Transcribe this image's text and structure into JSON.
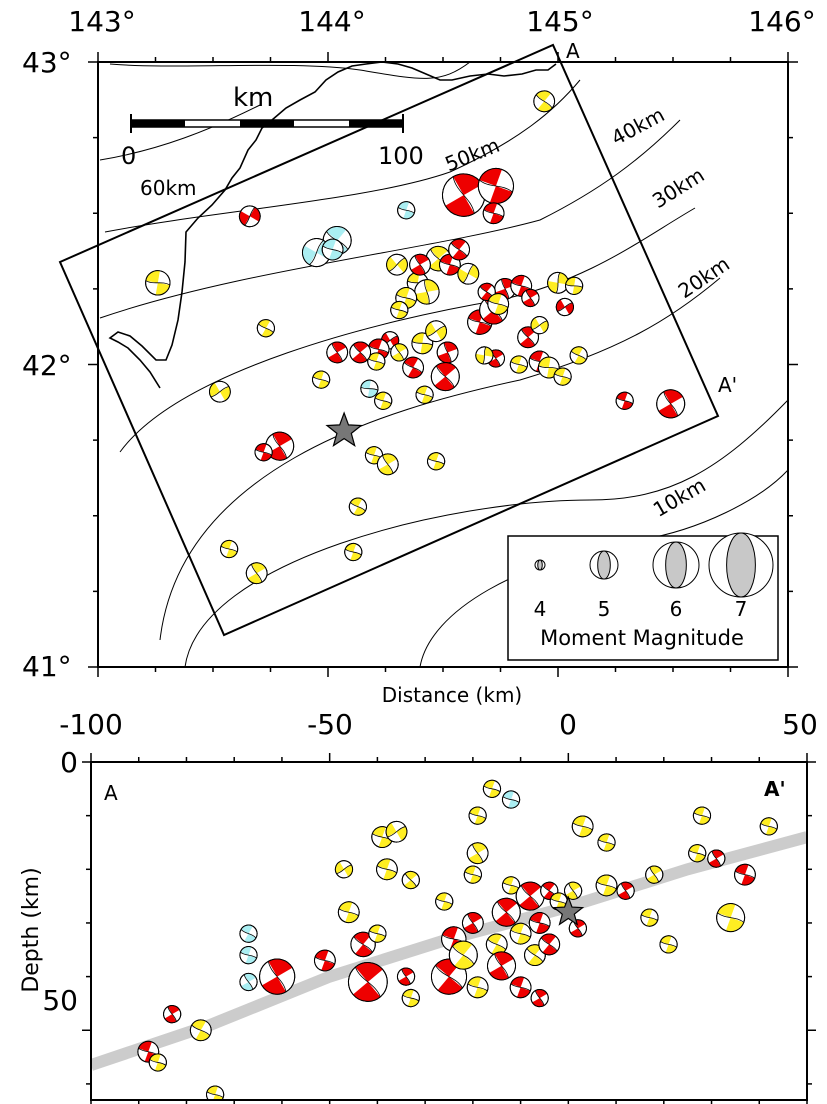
{
  "chart_data": [
    {
      "type": "scatter",
      "panel": "map",
      "lon_ticks": [
        "143°",
        "144°",
        "145°",
        "146°"
      ],
      "lat_ticks": [
        "43°",
        "42°",
        "41°"
      ],
      "xlim": [
        143,
        146
      ],
      "ylim": [
        41,
        43
      ],
      "scale_bar": {
        "unit": "km",
        "start": "0",
        "end": "100"
      },
      "slab_contours": [
        "60km",
        "50km",
        "40km",
        "30km",
        "20km",
        "10km"
      ],
      "profile_labels": {
        "start": "A",
        "end": "A'"
      },
      "epicenter": {
        "lon": 144.07,
        "lat": 41.78,
        "symbol": "star"
      },
      "legend": {
        "title": "Moment Magnitude",
        "magnitudes": [
          "4",
          "5",
          "6",
          "7"
        ]
      },
      "colors": {
        "red": "#ee0000",
        "yellow": "#ffee22",
        "cyan": "#aaeef2",
        "star": "#777777"
      },
      "mechanisms": [
        {
          "lon": 144.94,
          "lat": 42.87,
          "mag": 4.6,
          "color": "yellow",
          "rot": 40
        },
        {
          "lon": 143.26,
          "lat": 42.27,
          "mag": 4.8,
          "color": "yellow",
          "rot": 10
        },
        {
          "lon": 143.66,
          "lat": 42.49,
          "mag": 4.6,
          "color": "red",
          "rot": 300
        },
        {
          "lon": 144.04,
          "lat": 42.41,
          "mag": 5.0,
          "color": "cyan",
          "rot": 40
        },
        {
          "lon": 143.95,
          "lat": 42.37,
          "mag": 5.0,
          "color": "cyan",
          "rot": 120
        },
        {
          "lon": 144.02,
          "lat": 42.38,
          "mag": 4.6,
          "color": "cyan",
          "rot": 20
        },
        {
          "lon": 144.34,
          "lat": 42.51,
          "mag": 4.4,
          "color": "cyan",
          "rot": 200
        },
        {
          "lon": 144.59,
          "lat": 42.56,
          "mag": 5.8,
          "color": "red",
          "rot": 240
        },
        {
          "lon": 144.73,
          "lat": 42.59,
          "mag": 5.4,
          "color": "red",
          "rot": 200
        },
        {
          "lon": 144.72,
          "lat": 42.5,
          "mag": 4.6,
          "color": "red",
          "rot": 200
        },
        {
          "lon": 143.73,
          "lat": 42.12,
          "mag": 4.4,
          "color": "yellow",
          "rot": 30
        },
        {
          "lon": 144.3,
          "lat": 42.33,
          "mag": 4.6,
          "color": "yellow",
          "rot": 320
        },
        {
          "lon": 144.39,
          "lat": 42.27,
          "mag": 4.6,
          "color": "yellow",
          "rot": 10
        },
        {
          "lon": 144.43,
          "lat": 42.24,
          "mag": 4.8,
          "color": "yellow",
          "rot": 80
        },
        {
          "lon": 144.48,
          "lat": 42.35,
          "mag": 4.8,
          "color": "yellow",
          "rot": 50
        },
        {
          "lon": 144.53,
          "lat": 42.33,
          "mag": 4.6,
          "color": "red",
          "rot": 200
        },
        {
          "lon": 144.57,
          "lat": 42.38,
          "mag": 4.6,
          "color": "red",
          "rot": 220
        },
        {
          "lon": 144.61,
          "lat": 42.3,
          "mag": 4.6,
          "color": "yellow",
          "rot": 120
        },
        {
          "lon": 144.4,
          "lat": 42.33,
          "mag": 4.6,
          "color": "red",
          "rot": 240
        },
        {
          "lon": 144.34,
          "lat": 42.22,
          "mag": 4.6,
          "color": "yellow",
          "rot": 20
        },
        {
          "lon": 144.31,
          "lat": 42.18,
          "mag": 4.4,
          "color": "yellow",
          "rot": 20
        },
        {
          "lon": 144.27,
          "lat": 42.08,
          "mag": 4.4,
          "color": "red",
          "rot": 330
        },
        {
          "lon": 144.22,
          "lat": 42.05,
          "mag": 4.6,
          "color": "red",
          "rot": 200
        },
        {
          "lon": 144.31,
          "lat": 42.04,
          "mag": 4.4,
          "color": "yellow",
          "rot": 60
        },
        {
          "lon": 144.21,
          "lat": 42.01,
          "mag": 4.4,
          "color": "yellow",
          "rot": 20
        },
        {
          "lon": 144.04,
          "lat": 42.04,
          "mag": 4.6,
          "color": "red",
          "rot": 60
        },
        {
          "lon": 144.14,
          "lat": 42.04,
          "mag": 4.6,
          "color": "red",
          "rot": 230
        },
        {
          "lon": 143.97,
          "lat": 41.95,
          "mag": 4.4,
          "color": "yellow",
          "rot": 20
        },
        {
          "lon": 144.18,
          "lat": 41.92,
          "mag": 4.4,
          "color": "cyan",
          "rot": 10
        },
        {
          "lon": 144.41,
          "lat": 42.07,
          "mag": 4.6,
          "color": "yellow",
          "rot": 10
        },
        {
          "lon": 144.47,
          "lat": 42.11,
          "mag": 4.6,
          "color": "yellow",
          "rot": 150
        },
        {
          "lon": 144.52,
          "lat": 42.04,
          "mag": 4.6,
          "color": "red",
          "rot": 250
        },
        {
          "lon": 144.51,
          "lat": 41.96,
          "mag": 5.0,
          "color": "red",
          "rot": 230
        },
        {
          "lon": 144.37,
          "lat": 41.99,
          "mag": 4.6,
          "color": "red",
          "rot": 210
        },
        {
          "lon": 144.42,
          "lat": 41.9,
          "mag": 4.4,
          "color": "yellow",
          "rot": 20
        },
        {
          "lon": 144.24,
          "lat": 41.88,
          "mag": 4.4,
          "color": "yellow",
          "rot": 20
        },
        {
          "lon": 144.66,
          "lat": 42.14,
          "mag": 4.8,
          "color": "red",
          "rot": 200
        },
        {
          "lon": 144.72,
          "lat": 42.18,
          "mag": 5.0,
          "color": "red",
          "rot": 230
        },
        {
          "lon": 144.77,
          "lat": 42.25,
          "mag": 4.6,
          "color": "red",
          "rot": 250
        },
        {
          "lon": 144.84,
          "lat": 42.26,
          "mag": 4.6,
          "color": "red",
          "rot": 200
        },
        {
          "lon": 144.88,
          "lat": 42.22,
          "mag": 4.4,
          "color": "red",
          "rot": 240
        },
        {
          "lon": 144.69,
          "lat": 42.24,
          "mag": 4.4,
          "color": "red",
          "rot": 220
        },
        {
          "lon": 144.74,
          "lat": 42.2,
          "mag": 4.6,
          "color": "yellow",
          "rot": 20
        },
        {
          "lon": 144.87,
          "lat": 42.09,
          "mag": 4.6,
          "color": "red",
          "rot": 230
        },
        {
          "lon": 144.92,
          "lat": 42.01,
          "mag": 4.6,
          "color": "red",
          "rot": 200
        },
        {
          "lon": 144.83,
          "lat": 42.0,
          "mag": 4.4,
          "color": "yellow",
          "rot": 20
        },
        {
          "lon": 144.73,
          "lat": 42.02,
          "mag": 4.4,
          "color": "red",
          "rot": 240
        },
        {
          "lon": 144.68,
          "lat": 42.03,
          "mag": 4.4,
          "color": "yellow",
          "rot": 100
        },
        {
          "lon": 144.96,
          "lat": 41.99,
          "mag": 4.6,
          "color": "yellow",
          "rot": 10
        },
        {
          "lon": 145.02,
          "lat": 41.96,
          "mag": 4.4,
          "color": "yellow",
          "rot": 20
        },
        {
          "lon": 145.0,
          "lat": 42.27,
          "mag": 4.6,
          "color": "yellow",
          "rot": 100
        },
        {
          "lon": 145.07,
          "lat": 42.26,
          "mag": 4.4,
          "color": "yellow",
          "rot": 10
        },
        {
          "lon": 145.03,
          "lat": 42.19,
          "mag": 4.4,
          "color": "red",
          "rot": 330
        },
        {
          "lon": 145.09,
          "lat": 42.03,
          "mag": 4.4,
          "color": "yellow",
          "rot": 30
        },
        {
          "lon": 144.92,
          "lat": 42.13,
          "mag": 4.4,
          "color": "yellow",
          "rot": 330
        },
        {
          "lon": 145.29,
          "lat": 41.88,
          "mag": 4.4,
          "color": "red",
          "rot": 200
        },
        {
          "lon": 145.49,
          "lat": 41.87,
          "mag": 5.0,
          "color": "red",
          "rot": 240
        },
        {
          "lon": 143.53,
          "lat": 41.91,
          "mag": 4.6,
          "color": "yellow",
          "rot": 330
        },
        {
          "lon": 143.79,
          "lat": 41.73,
          "mag": 5.0,
          "color": "red",
          "rot": 240
        },
        {
          "lon": 143.72,
          "lat": 41.71,
          "mag": 4.4,
          "color": "red",
          "rot": 200
        },
        {
          "lon": 144.2,
          "lat": 41.7,
          "mag": 4.4,
          "color": "yellow",
          "rot": 20
        },
        {
          "lon": 144.26,
          "lat": 41.67,
          "mag": 4.6,
          "color": "yellow",
          "rot": 60
        },
        {
          "lon": 144.47,
          "lat": 41.68,
          "mag": 4.4,
          "color": "yellow",
          "rot": 20
        },
        {
          "lon": 144.13,
          "lat": 41.53,
          "mag": 4.4,
          "color": "yellow",
          "rot": 30
        },
        {
          "lon": 143.57,
          "lat": 41.39,
          "mag": 4.4,
          "color": "yellow",
          "rot": 20
        },
        {
          "lon": 143.69,
          "lat": 41.31,
          "mag": 4.6,
          "color": "yellow",
          "rot": 60
        },
        {
          "lon": 144.11,
          "lat": 41.38,
          "mag": 4.4,
          "color": "yellow",
          "rot": 20
        }
      ]
    },
    {
      "type": "scatter",
      "panel": "cross-section",
      "xlabel": "Distance (km)",
      "ylabel": "Depth (km)",
      "xlim": [
        -100,
        50
      ],
      "ylim": [
        0,
        63
      ],
      "x_ticks": [
        "-100",
        "-50",
        "0",
        "50"
      ],
      "y_ticks": [
        "0",
        "50"
      ],
      "corner_labels": {
        "left": "A",
        "right": "A'"
      },
      "slab_surface": {
        "x": [
          -100,
          -75,
          -50,
          -25,
          0,
          25,
          50
        ],
        "y": [
          56.5,
          49,
          40,
          33,
          27,
          20,
          14
        ]
      },
      "epicenter": {
        "x": 0,
        "y": 28,
        "symbol": "star"
      },
      "mechanisms": [
        {
          "x": -88,
          "y": 54,
          "mag": 4.6,
          "color": "red",
          "rot": 200
        },
        {
          "x": -86,
          "y": 56,
          "mag": 4.4,
          "color": "yellow",
          "rot": 20
        },
        {
          "x": -83,
          "y": 47,
          "mag": 4.4,
          "color": "red",
          "rot": 240
        },
        {
          "x": -77,
          "y": 50,
          "mag": 4.6,
          "color": "yellow",
          "rot": 30
        },
        {
          "x": -74,
          "y": 62,
          "mag": 4.4,
          "color": "yellow",
          "rot": 20
        },
        {
          "x": -67,
          "y": 32,
          "mag": 4.4,
          "color": "cyan",
          "rot": 30
        },
        {
          "x": -67,
          "y": 36,
          "mag": 4.4,
          "color": "cyan",
          "rot": 20
        },
        {
          "x": -67,
          "y": 41,
          "mag": 4.4,
          "color": "cyan",
          "rot": 60
        },
        {
          "x": -61,
          "y": 40,
          "mag": 5.4,
          "color": "red",
          "rot": 240
        },
        {
          "x": -51,
          "y": 37,
          "mag": 4.6,
          "color": "red",
          "rot": 200
        },
        {
          "x": -42,
          "y": 41,
          "mag": 5.6,
          "color": "red",
          "rot": 230
        },
        {
          "x": -43,
          "y": 34,
          "mag": 4.8,
          "color": "red",
          "rot": 220
        },
        {
          "x": -40,
          "y": 32,
          "mag": 4.4,
          "color": "yellow",
          "rot": 20
        },
        {
          "x": -46,
          "y": 28,
          "mag": 4.6,
          "color": "yellow",
          "rot": 20
        },
        {
          "x": -47,
          "y": 20,
          "mag": 4.4,
          "color": "yellow",
          "rot": 330
        },
        {
          "x": -39,
          "y": 14,
          "mag": 4.6,
          "color": "yellow",
          "rot": 20
        },
        {
          "x": -36,
          "y": 13,
          "mag": 4.6,
          "color": "yellow",
          "rot": 330
        },
        {
          "x": -38,
          "y": 20,
          "mag": 4.6,
          "color": "yellow",
          "rot": 20
        },
        {
          "x": -33,
          "y": 22,
          "mag": 4.4,
          "color": "yellow",
          "rot": 50
        },
        {
          "x": -34,
          "y": 40,
          "mag": 4.4,
          "color": "red",
          "rot": 240
        },
        {
          "x": -33,
          "y": 44,
          "mag": 4.4,
          "color": "yellow",
          "rot": 20
        },
        {
          "x": -26,
          "y": 26,
          "mag": 4.4,
          "color": "yellow",
          "rot": 20
        },
        {
          "x": -25,
          "y": 40,
          "mag": 5.4,
          "color": "red",
          "rot": 220
        },
        {
          "x": -24,
          "y": 33,
          "mag": 4.8,
          "color": "red",
          "rot": 200
        },
        {
          "x": -22,
          "y": 36,
          "mag": 5.0,
          "color": "yellow",
          "rot": 40
        },
        {
          "x": -20,
          "y": 30,
          "mag": 4.6,
          "color": "red",
          "rot": 240
        },
        {
          "x": -19,
          "y": 42,
          "mag": 4.6,
          "color": "yellow",
          "rot": 20
        },
        {
          "x": -20,
          "y": 21,
          "mag": 4.4,
          "color": "yellow",
          "rot": 20
        },
        {
          "x": -19,
          "y": 17,
          "mag": 4.6,
          "color": "yellow",
          "rot": 60
        },
        {
          "x": -19,
          "y": 10,
          "mag": 4.4,
          "color": "yellow",
          "rot": 20
        },
        {
          "x": -16,
          "y": 5,
          "mag": 4.4,
          "color": "yellow",
          "rot": 20
        },
        {
          "x": -12,
          "y": 7,
          "mag": 4.4,
          "color": "cyan",
          "rot": 20
        },
        {
          "x": -13,
          "y": 28,
          "mag": 5.0,
          "color": "red",
          "rot": 230
        },
        {
          "x": -15,
          "y": 34,
          "mag": 4.6,
          "color": "yellow",
          "rot": 30
        },
        {
          "x": -14,
          "y": 38,
          "mag": 5.0,
          "color": "red",
          "rot": 240
        },
        {
          "x": -12,
          "y": 23,
          "mag": 4.4,
          "color": "yellow",
          "rot": 20
        },
        {
          "x": -10,
          "y": 32,
          "mag": 4.6,
          "color": "yellow",
          "rot": 20
        },
        {
          "x": -10,
          "y": 42,
          "mag": 4.6,
          "color": "red",
          "rot": 200
        },
        {
          "x": -8,
          "y": 25,
          "mag": 5.0,
          "color": "red",
          "rot": 230
        },
        {
          "x": -7,
          "y": 36,
          "mag": 4.6,
          "color": "yellow",
          "rot": 40
        },
        {
          "x": -6,
          "y": 30,
          "mag": 4.6,
          "color": "red",
          "rot": 200
        },
        {
          "x": -6,
          "y": 44,
          "mag": 4.4,
          "color": "red",
          "rot": 240
        },
        {
          "x": -4,
          "y": 24,
          "mag": 4.4,
          "color": "red",
          "rot": 220
        },
        {
          "x": -4,
          "y": 34,
          "mag": 4.6,
          "color": "red",
          "rot": 220
        },
        {
          "x": -2,
          "y": 26,
          "mag": 4.4,
          "color": "yellow",
          "rot": 20
        },
        {
          "x": 2,
          "y": 31,
          "mag": 4.4,
          "color": "red",
          "rot": 240
        },
        {
          "x": 1,
          "y": 24,
          "mag": 4.4,
          "color": "yellow",
          "rot": 60
        },
        {
          "x": 3,
          "y": 12,
          "mag": 4.6,
          "color": "yellow",
          "rot": 20
        },
        {
          "x": 8,
          "y": 23,
          "mag": 4.6,
          "color": "yellow",
          "rot": 20
        },
        {
          "x": 8,
          "y": 15,
          "mag": 4.4,
          "color": "yellow",
          "rot": 20
        },
        {
          "x": 12,
          "y": 24,
          "mag": 4.4,
          "color": "red",
          "rot": 240
        },
        {
          "x": 17,
          "y": 29,
          "mag": 4.4,
          "color": "yellow",
          "rot": 20
        },
        {
          "x": 18,
          "y": 21,
          "mag": 4.4,
          "color": "yellow",
          "rot": 60
        },
        {
          "x": 21,
          "y": 34,
          "mag": 4.4,
          "color": "yellow",
          "rot": 20
        },
        {
          "x": 27,
          "y": 17,
          "mag": 4.4,
          "color": "yellow",
          "rot": 20
        },
        {
          "x": 28,
          "y": 10,
          "mag": 4.4,
          "color": "yellow",
          "rot": 20
        },
        {
          "x": 31,
          "y": 18,
          "mag": 4.4,
          "color": "red",
          "rot": 240
        },
        {
          "x": 34,
          "y": 29,
          "mag": 5.0,
          "color": "yellow",
          "rot": 20
        },
        {
          "x": 37,
          "y": 21,
          "mag": 4.6,
          "color": "red",
          "rot": 200
        },
        {
          "x": 42,
          "y": 12,
          "mag": 4.4,
          "color": "yellow",
          "rot": 20
        }
      ]
    }
  ]
}
